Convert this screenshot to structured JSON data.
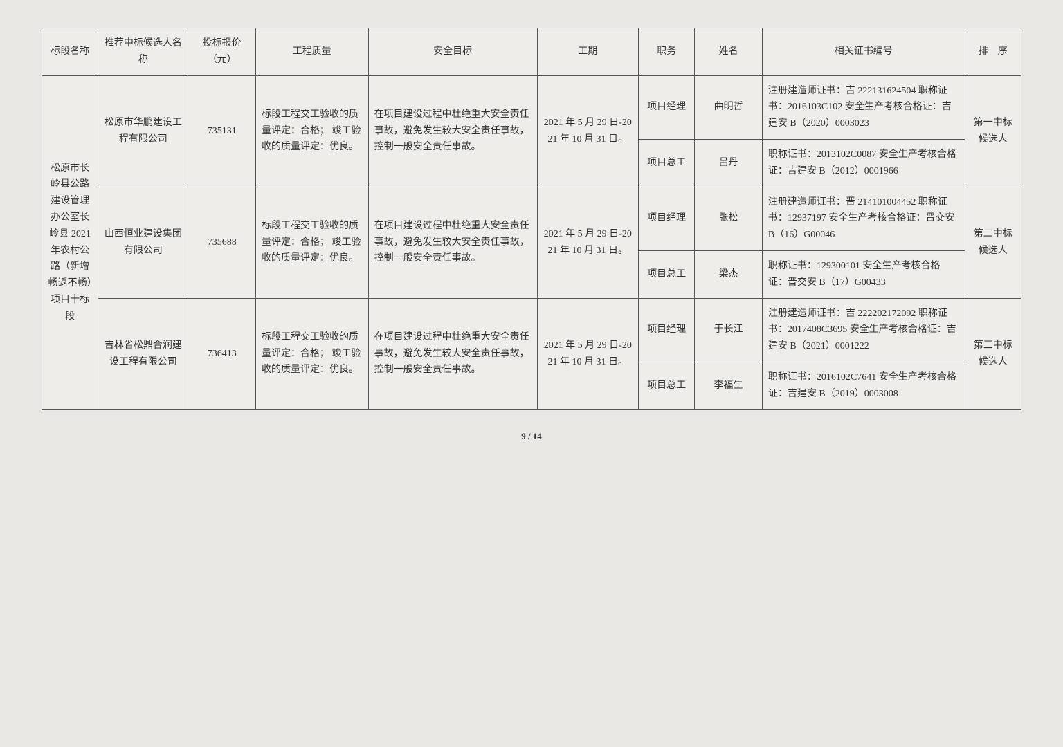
{
  "headers": {
    "section": "标段名称",
    "bidder": "推荐中标候选人名称",
    "price": "投标报价（元）",
    "quality": "工程质量",
    "safety": "安全目标",
    "period": "工期",
    "role": "职务",
    "name": "姓名",
    "cert": "相关证书编号",
    "rank": "排　序"
  },
  "section_name": "松原市长岭县公路建设管理办公室长岭县 2021 年农村公路（新增畅返不畅）项目十标段",
  "bidders": [
    {
      "bidder": "松原市华鹏建设工程有限公司",
      "price": "735131",
      "quality": "标段工程交工验收的质量评定：合格；\n竣工验收的质量评定：优良。",
      "safety": "在项目建设过程中杜绝重大安全责任事故，避免发生较大安全责任事故，控制一般安全责任事故。",
      "period": "2021 年 5 月 29 日-2021 年 10 月 31 日。",
      "rank": "第一中标候选人",
      "people": [
        {
          "role": "项目经理",
          "name": "曲明哲",
          "cert": "注册建造师证书：吉 222131624504\n职称证书：2016103C102\n安全生产考核合格证：吉建安 B（2020）0003023"
        },
        {
          "role": "项目总工",
          "name": "吕丹",
          "cert": "职称证书：2013102C0087\n安全生产考核合格证：吉建安 B（2012）0001966"
        }
      ]
    },
    {
      "bidder": "山西恒业建设集团有限公司",
      "price": "735688",
      "quality": "标段工程交工验收的质量评定：合格；\n竣工验收的质量评定：优良。",
      "safety": "在项目建设过程中杜绝重大安全责任事故，避免发生较大安全责任事故，控制一般安全责任事故。",
      "period": "2021 年 5 月 29 日-2021 年 10 月 31 日。",
      "rank": "第二中标候选人",
      "people": [
        {
          "role": "项目经理",
          "name": "张松",
          "cert": "注册建造师证书：晋 214101004452\n职称证书：12937197\n安全生产考核合格证：晋交安 B（16）G00046"
        },
        {
          "role": "项目总工",
          "name": "梁杰",
          "cert": "职称证书：129300101\n安全生产考核合格证：晋交安 B（17）G00433"
        }
      ]
    },
    {
      "bidder": "吉林省松鼎合润建设工程有限公司",
      "price": "736413",
      "quality": "标段工程交工验收的质量评定：合格；\n竣工验收的质量评定：优良。",
      "safety": "在项目建设过程中杜绝重大安全责任事故，避免发生较大安全责任事故，控制一般安全责任事故。",
      "period": "2021 年 5 月 29 日-2021 年 10 月 31 日。",
      "rank": "第三中标候选人",
      "people": [
        {
          "role": "项目经理",
          "name": "于长江",
          "cert": "注册建造师证书：吉 222202172092\n职称证书：2017408C3695\n安全生产考核合格证：吉建安 B（2021）0001222"
        },
        {
          "role": "项目总工",
          "name": "李福生",
          "cert": "职称证书：2016102C7641\n安全生产考核合格证：吉建安 B（2019）0003008"
        }
      ]
    }
  ],
  "pager": "9 / 14"
}
